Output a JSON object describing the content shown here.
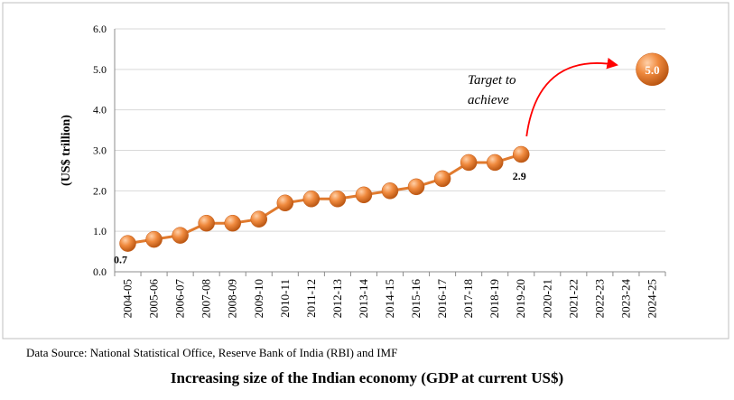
{
  "chart_data": {
    "type": "line",
    "title": "Increasing size of the Indian economy (GDP at current US$)",
    "source": "Data Source: National Statistical Office, Reserve Bank of India (RBI) and IMF",
    "ylabel": "(US$ trillion)",
    "xlabel": "",
    "ylim": [
      0,
      6
    ],
    "y_ticks": [
      "0.0",
      "1.0",
      "2.0",
      "3.0",
      "4.0",
      "5.0",
      "6.0"
    ],
    "categories": [
      "2004-05",
      "2005-06",
      "2006-07",
      "2007-08",
      "2008-09",
      "2009-10",
      "2010-11",
      "2011-12",
      "2012-13",
      "2013-14",
      "2014-15",
      "2015-16",
      "2016-17",
      "2017-18",
      "2018-19",
      "2019-20",
      "2020-21",
      "2021-22",
      "2022-23",
      "2023-24",
      "2024-25"
    ],
    "series": [
      {
        "values": [
          0.7,
          0.8,
          0.9,
          1.2,
          1.2,
          1.3,
          1.7,
          1.8,
          1.8,
          1.9,
          2.0,
          2.1,
          2.3,
          2.7,
          2.7,
          2.9,
          null,
          null,
          null,
          null,
          null
        ]
      }
    ],
    "data_labels": [
      {
        "category": "2004-05",
        "text": "0.7"
      },
      {
        "category": "2019-20",
        "text": "2.9"
      }
    ],
    "target": {
      "category": "2024-25",
      "value": 5.0,
      "value_label": "5.0",
      "label_lines": [
        "Target to",
        "achieve"
      ]
    },
    "grid": true,
    "colors": {
      "line": "#e07a2e",
      "marker": "#e8803a",
      "marker_dark": "#c55a15",
      "arrow": "#ff0000",
      "grid": "#d9d9d9",
      "axis": "#8c8c8c"
    }
  }
}
